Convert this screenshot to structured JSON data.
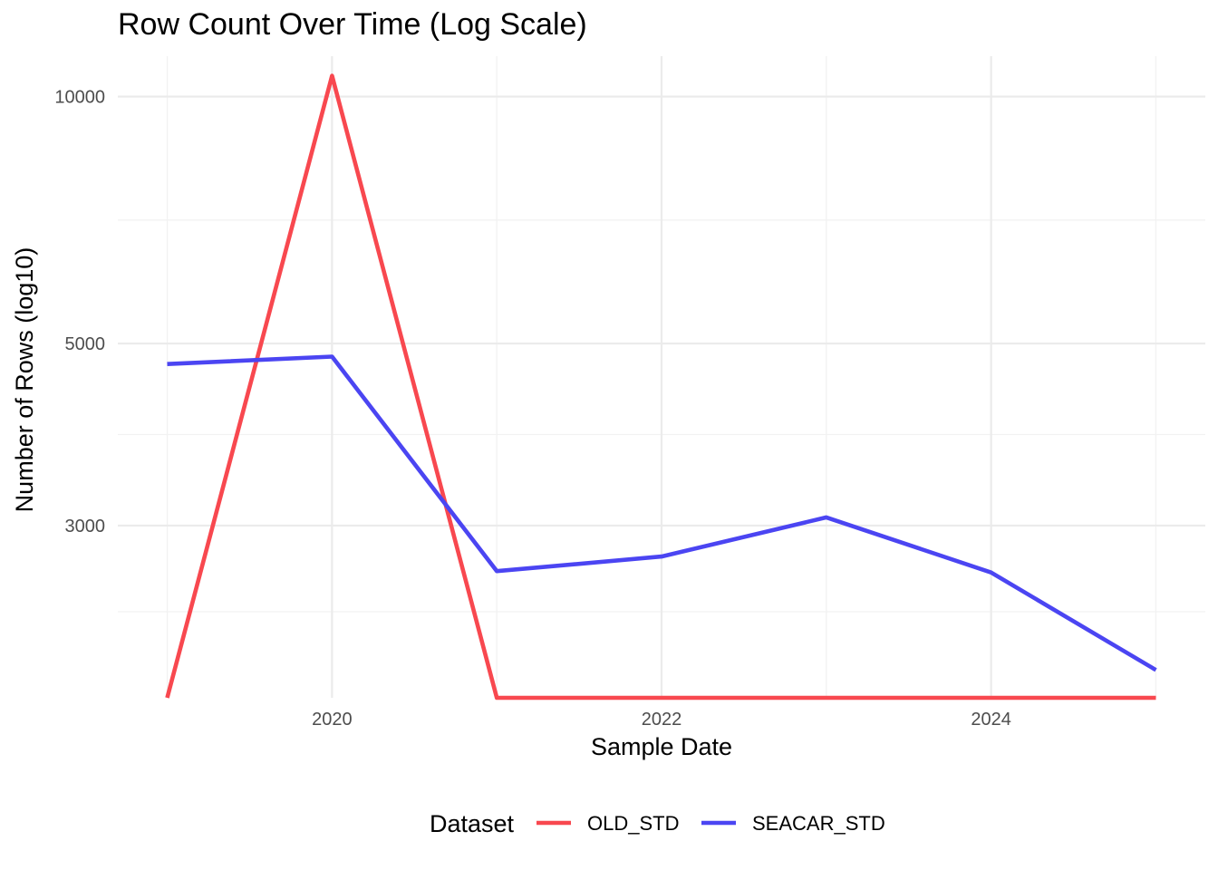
{
  "chart_data": {
    "type": "line",
    "title": "Row Count Over Time (Log Scale)",
    "xlabel": "Sample Date",
    "ylabel": "Number of Rows (log10)",
    "y_scale": "log10",
    "x": [
      2019,
      2020,
      2021,
      2022,
      2023,
      2024,
      2025
    ],
    "xlim": [
      2018.7,
      2025.3
    ],
    "x_ticks": [
      2020,
      2022,
      2024
    ],
    "y_ticks": [
      10000,
      5000,
      3000
    ],
    "ylim": [
      1850,
      11200
    ],
    "grid": true,
    "legend": {
      "title": "Dataset",
      "placement": "bottom"
    },
    "series": [
      {
        "name": "OLD_STD",
        "color": "#f8484f",
        "values": [
          1850,
          10600,
          1850,
          1850,
          1850,
          1850,
          1850
        ]
      },
      {
        "name": "SEACAR_STD",
        "color": "#4b45f2",
        "values": [
          4720,
          4820,
          2640,
          2750,
          3070,
          2630,
          2000
        ]
      }
    ]
  }
}
